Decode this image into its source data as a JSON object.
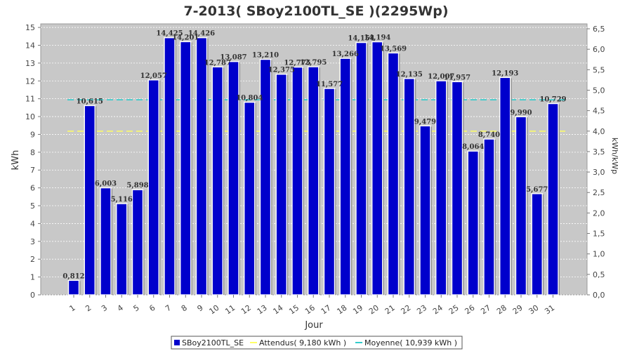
{
  "chart_data": {
    "type": "bar",
    "title": "7-2013( SBoy2100TL_SE )(2295Wp)",
    "xlabel": "Jour",
    "ylabel": "kWh",
    "ylabel_right": "kWh/kWp",
    "ylim": [
      0,
      15.2
    ],
    "yticks": [
      0,
      1,
      2,
      3,
      4,
      5,
      6,
      7,
      8,
      9,
      10,
      11,
      12,
      13,
      14,
      15
    ],
    "ylim_right": [
      0,
      6.62
    ],
    "yticks_right": [
      "0,0",
      "0,5",
      "1,0",
      "1,5",
      "2,0",
      "2,5",
      "3,0",
      "3,5",
      "4,0",
      "4,5",
      "5,0",
      "5,5",
      "6,0",
      "6,5"
    ],
    "yticks_right_values": [
      0,
      0.5,
      1,
      1.5,
      2,
      2.5,
      3,
      3.5,
      4,
      4.5,
      5,
      5.5,
      6,
      6.5
    ],
    "grid": true,
    "legend_position": "bottom",
    "categories": [
      "1",
      "2",
      "3",
      "4",
      "5",
      "6",
      "7",
      "8",
      "9",
      "10",
      "11",
      "12",
      "13",
      "14",
      "15",
      "16",
      "17",
      "18",
      "19",
      "20",
      "21",
      "22",
      "23",
      "24",
      "25",
      "26",
      "27",
      "28",
      "29",
      "30",
      "31"
    ],
    "series": [
      {
        "name": "SBoy2100TL_SE",
        "color": "#0000cc",
        "values": [
          0.812,
          10.615,
          6.003,
          5.116,
          5.898,
          12.057,
          14.425,
          14.201,
          14.426,
          12.787,
          13.087,
          10.804,
          13.21,
          12.375,
          12.775,
          12.795,
          11.577,
          13.266,
          14.154,
          14.194,
          13.569,
          12.135,
          9.479,
          12.007,
          11.957,
          8.064,
          8.74,
          12.193,
          9.99,
          5.677,
          10.729
        ],
        "labels": [
          "0,812",
          "10,615",
          "6,003",
          "5,116",
          "5,898",
          "12,057",
          "14,425",
          "14,201",
          "14,426",
          "12,787",
          "13,087",
          "10,804",
          "13,210",
          "12,375",
          "12,775",
          "12,795",
          "11,577",
          "13,266",
          "14,154",
          "14,194",
          "13,569",
          "12,135",
          "9,479",
          "12,007",
          "11,957",
          "8,064",
          "8,740",
          "12,193",
          "9,990",
          "5,677",
          "10,729"
        ]
      }
    ],
    "reference_lines": [
      {
        "name": "Attendus( 9,180 kWh )",
        "value": 9.18,
        "color": "#ffff66"
      },
      {
        "name": "Moyenne( 10,939 kWh )",
        "value": 10.939,
        "color": "#33cccc"
      }
    ]
  }
}
